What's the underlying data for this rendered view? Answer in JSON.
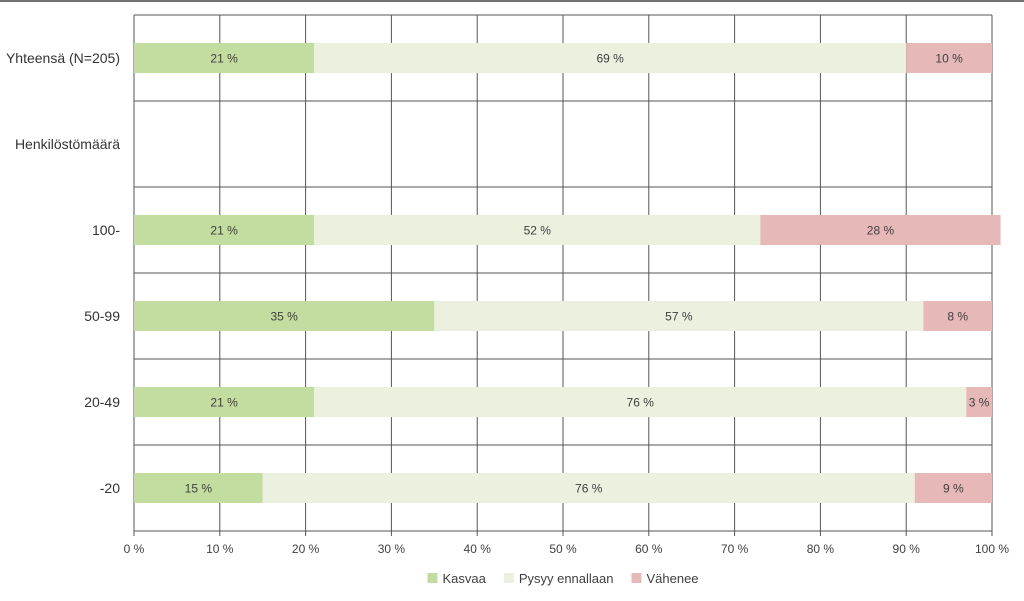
{
  "chart_data": {
    "type": "bar",
    "orientation": "horizontal",
    "stacked": true,
    "categories": [
      "Yhteensä (N=205)",
      "Henkilöstömäärä",
      "100-",
      "50-99",
      "20-49",
      "-20"
    ],
    "series": [
      {
        "name": "Kasvaa",
        "color": "#c3dca0",
        "values": [
          21,
          null,
          21,
          35,
          21,
          15
        ],
        "labels": [
          "21 %",
          "",
          "21 %",
          "35 %",
          "21 %",
          "15 %"
        ]
      },
      {
        "name": "Pysyy ennallaan",
        "color": "#ebf1de",
        "values": [
          69,
          null,
          52,
          57,
          76,
          76
        ],
        "labels": [
          "69 %",
          "",
          "52 %",
          "57 %",
          "76 %",
          "76 %"
        ]
      },
      {
        "name": "Vähenee",
        "color": "#e6b9b8",
        "values": [
          10,
          null,
          28,
          8,
          3,
          9
        ],
        "labels": [
          "10 %",
          "",
          "28 %",
          "8 %",
          "3 %",
          "9 %"
        ]
      }
    ],
    "xlim": [
      0,
      100
    ],
    "xticks": [
      "0 %",
      "10 %",
      "20 %",
      "30 %",
      "40 %",
      "50 %",
      "60 %",
      "70 %",
      "80 %",
      "90 %",
      "100 %"
    ],
    "grid": true,
    "legend": "bottom"
  }
}
